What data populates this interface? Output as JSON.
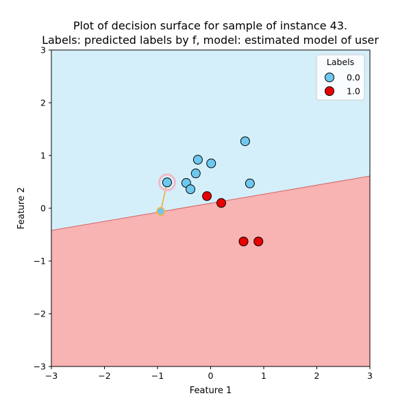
{
  "chart_data": {
    "type": "scatter",
    "title_line1": "Plot of decision surface for sample of instance 43.",
    "title_line2": "Labels: predicted labels by f, model: estimated model of user",
    "xlabel": "Feature 1",
    "ylabel": "Feature 2",
    "xlim": [
      -3,
      3
    ],
    "ylim": [
      -3,
      3
    ],
    "xticks": [
      -3,
      -2,
      -1,
      0,
      1,
      2,
      3
    ],
    "yticks": [
      -3,
      -2,
      -1,
      0,
      1,
      2,
      3
    ],
    "xtick_labels": [
      "−3",
      "−2",
      "−1",
      "0",
      "1",
      "2",
      "3"
    ],
    "ytick_labels": [
      "−3",
      "−2",
      "−1",
      "0",
      "1",
      "2",
      "3"
    ],
    "decision_boundary": {
      "y_at_xmin": -0.42,
      "y_at_xmax": 0.61,
      "above_color": "#d4effa",
      "below_color": "#f8b3b3",
      "line_color": "#d96060"
    },
    "legend": {
      "title": "Labels",
      "placement": "top-right",
      "entries": [
        "0.0",
        "1.0"
      ]
    },
    "series": [
      {
        "name": "0.0",
        "color": "#6ec8ee",
        "points": [
          [
            0.65,
            1.27
          ],
          [
            -0.24,
            0.92
          ],
          [
            0.01,
            0.85
          ],
          [
            -0.28,
            0.66
          ],
          [
            -0.82,
            0.49
          ],
          [
            -0.46,
            0.48
          ],
          [
            0.74,
            0.47
          ],
          [
            -0.38,
            0.36
          ]
        ]
      },
      {
        "name": "1.0",
        "color": "#e80000",
        "points": [
          [
            -0.07,
            0.23
          ],
          [
            0.2,
            0.1
          ],
          [
            0.62,
            -0.63
          ],
          [
            0.9,
            -0.63
          ]
        ]
      }
    ],
    "highlighted_instance": [
      -0.82,
      0.49
    ],
    "counterfactual": {
      "point": [
        -0.94,
        -0.06
      ],
      "point_color": "#6ec8ee",
      "ring_color": "#f5b342",
      "line_color": "#f5a623"
    },
    "highlight_ring_color": "#f4b9c8"
  }
}
